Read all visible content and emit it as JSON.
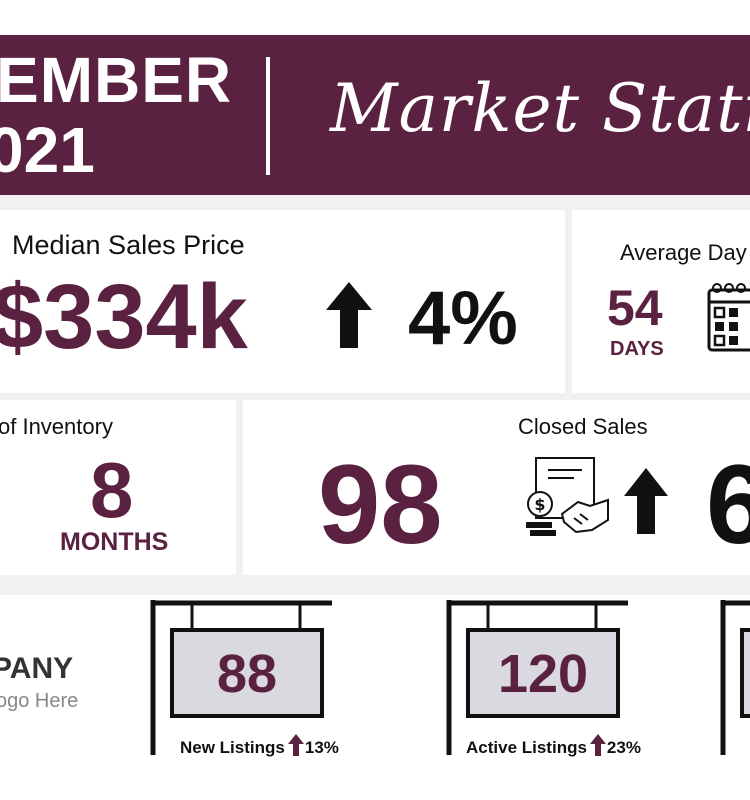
{
  "header": {
    "month": "EMBER",
    "year": "021",
    "script_title": "Market Statis"
  },
  "median_sales_price": {
    "label": "Median Sales Price",
    "value": "$334k",
    "change": "4%",
    "direction": "up"
  },
  "average_days": {
    "label": "Average Day",
    "value": "54",
    "unit": "DAYS"
  },
  "inventory": {
    "label": "of Inventory",
    "value": "8",
    "unit": "MONTHS"
  },
  "closed_sales": {
    "label": "Closed Sales",
    "value": "98",
    "change": "6",
    "direction": "up"
  },
  "company": {
    "name": "PANY",
    "subtitle": "ogo Here"
  },
  "signs": [
    {
      "value": "88",
      "caption": "New Listings",
      "change": "13%"
    },
    {
      "value": "120",
      "caption": "Active Listings",
      "change": "23%"
    }
  ],
  "colors": {
    "plum": "#5b2141",
    "panel_grey": "#f1f1f1",
    "sign_fill": "#d9d9df"
  }
}
